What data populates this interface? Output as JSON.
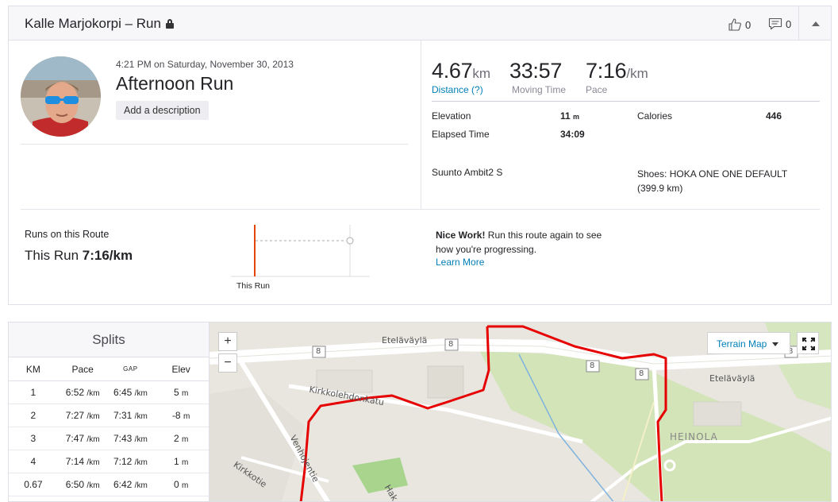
{
  "header": {
    "title": "Kalle Marjokorpi – Run",
    "kudos_count": "0",
    "comments_count": "0"
  },
  "activity": {
    "date": "4:21 PM on Saturday, November 30, 2013",
    "name": "Afternoon Run",
    "add_description": "Add a description"
  },
  "stats": {
    "distance": {
      "value": "4.67",
      "unit": "km",
      "label": "Distance (?)"
    },
    "moving_time": {
      "value": "33:57",
      "label": "Moving Time"
    },
    "pace": {
      "value": "7:16",
      "unit": "/km",
      "label": "Pace"
    },
    "elevation": {
      "label": "Elevation",
      "value": "11",
      "unit": "m"
    },
    "calories": {
      "label": "Calories",
      "value": "446"
    },
    "elapsed": {
      "label": "Elapsed Time",
      "value": "34:09"
    },
    "device": "Suunto Ambit2 S",
    "shoes": "Shoes: HOKA ONE ONE DEFAULT (399.9 km)"
  },
  "route": {
    "label": "Runs on this Route",
    "this_run_prefix": "This Run",
    "this_run_value": "7:16/km",
    "chart_label": "This Run",
    "nice_work_bold": "Nice Work!",
    "nice_work_text": " Run this route again to see how you're progressing.",
    "learn_more": "Learn More"
  },
  "splits": {
    "title": "Splits",
    "headers": {
      "km": "KM",
      "pace": "Pace",
      "gap": "GAP",
      "elev": "Elev"
    },
    "pace_unit": "/km",
    "elev_unit": "m",
    "rows": [
      {
        "km": "1",
        "pace": "6:52",
        "gap": "6:45",
        "elev": "5"
      },
      {
        "km": "2",
        "pace": "7:27",
        "gap": "7:31",
        "elev": "-8"
      },
      {
        "km": "3",
        "pace": "7:47",
        "gap": "7:43",
        "elev": "2"
      },
      {
        "km": "4",
        "pace": "7:14",
        "gap": "7:12",
        "elev": "1"
      },
      {
        "km": "0.67",
        "pace": "6:50",
        "gap": "6:42",
        "elev": "0"
      }
    ]
  },
  "map": {
    "zoom_in": "+",
    "zoom_out": "−",
    "map_type": "Terrain Map",
    "labels": {
      "etelavayla1": "Eteläväylä",
      "etelavayla2": "Eteläväylä",
      "kirkkolehdonkatu": "Kirkkolehdonkatu",
      "venhojentie": "Venhojentie",
      "kirkkotie": "Kirkkotie",
      "heinola": "HEINOLA",
      "hak": "Hak",
      "road8": "8"
    },
    "route_color": "#e60000"
  }
}
